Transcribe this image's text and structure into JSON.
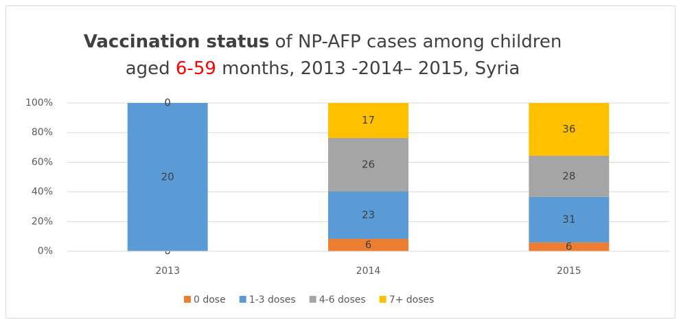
{
  "chart_data": {
    "type": "bar",
    "stacking": "percent",
    "title": [
      [
        {
          "text": "Vaccination status",
          "bold": true
        },
        {
          "text": " of NP-AFP cases among children"
        }
      ],
      [
        {
          "text": "aged "
        },
        {
          "text": "6-59",
          "color": "#ff0000"
        },
        {
          "text": " months, 2013 -2014– 2015, Syria"
        }
      ]
    ],
    "categories": [
      "2013",
      "2014",
      "2015"
    ],
    "series": [
      {
        "name": "0 dose",
        "color": "#ed7d31",
        "values": [
          0,
          6,
          6
        ]
      },
      {
        "name": "1-3 doses",
        "color": "#5b9bd5",
        "values": [
          20,
          23,
          31
        ]
      },
      {
        "name": "4-6 doses",
        "color": "#a5a5a5",
        "values": [
          0,
          26,
          28
        ]
      },
      {
        "name": "7+ doses",
        "color": "#ffc000",
        "values": [
          null,
          17,
          36
        ]
      }
    ],
    "ylim": [
      0,
      100
    ],
    "yticks": [
      {
        "value": 0,
        "label": "0%"
      },
      {
        "value": 20,
        "label": "20%"
      },
      {
        "value": 40,
        "label": "40%"
      },
      {
        "value": 60,
        "label": "60%"
      },
      {
        "value": 80,
        "label": "80%"
      },
      {
        "value": 100,
        "label": "100%"
      }
    ],
    "grid": true,
    "legend": "bottom"
  }
}
